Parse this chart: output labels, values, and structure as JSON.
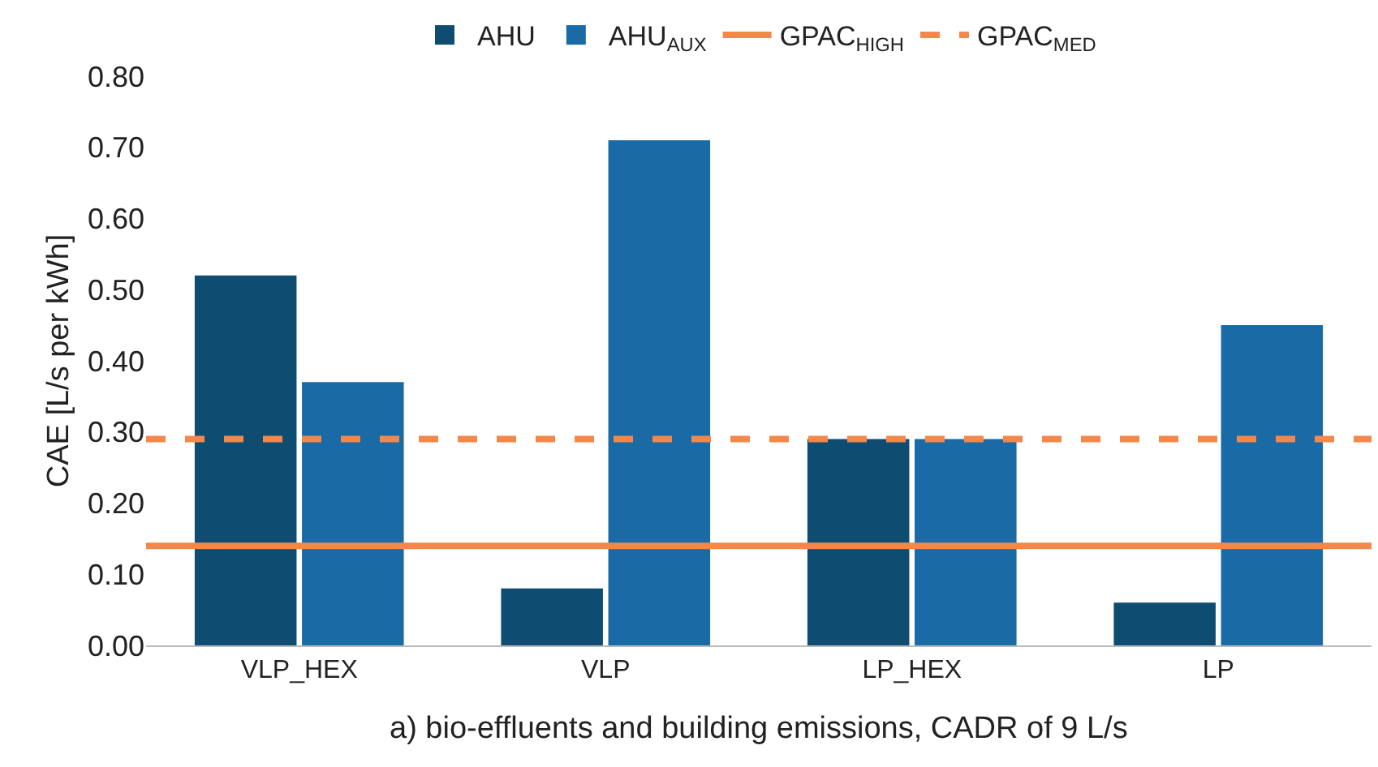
{
  "chart_data": {
    "type": "bar",
    "ylabel": "CAE [L/s per kWh]",
    "categories": [
      "VLP_HEX",
      "VLP",
      "LP_HEX",
      "LP"
    ],
    "series": [
      {
        "name": "AHU",
        "color": "#0f4c72",
        "values": [
          0.52,
          0.08,
          0.29,
          0.06
        ]
      },
      {
        "name": "AHU$_{AUX}$",
        "color": "#1a6aa6",
        "values": [
          0.37,
          0.71,
          0.29,
          0.45
        ]
      }
    ],
    "ref_lines": [
      {
        "axis": "y",
        "value": 0.14,
        "label": "GPAC$_{HIGH}$",
        "color": "#f2884b",
        "line_style": "solid"
      },
      {
        "axis": "y",
        "value": 0.29,
        "label": "GPAC$_{MED}$",
        "color": "#f2884b",
        "line_style": "dashed"
      }
    ],
    "ylim": [
      0,
      0.8
    ],
    "yticks": [
      {
        "value": 0,
        "label": "0.00"
      },
      {
        "value": 0.1,
        "label": "0.10"
      },
      {
        "value": 0.2,
        "label": "0.20"
      },
      {
        "value": 0.3,
        "label": "0.30"
      },
      {
        "value": 0.4,
        "label": "0.40"
      },
      {
        "value": 0.5,
        "label": "0.50"
      },
      {
        "value": 0.6,
        "label": "0.60"
      },
      {
        "value": 0.7,
        "label": "0.70"
      },
      {
        "value": 0.8,
        "label": "0.80"
      }
    ],
    "grid": false,
    "legend": "top",
    "annotations": [
      "a) bio-effluents and building emissions, CADR of 9 L/s"
    ]
  }
}
